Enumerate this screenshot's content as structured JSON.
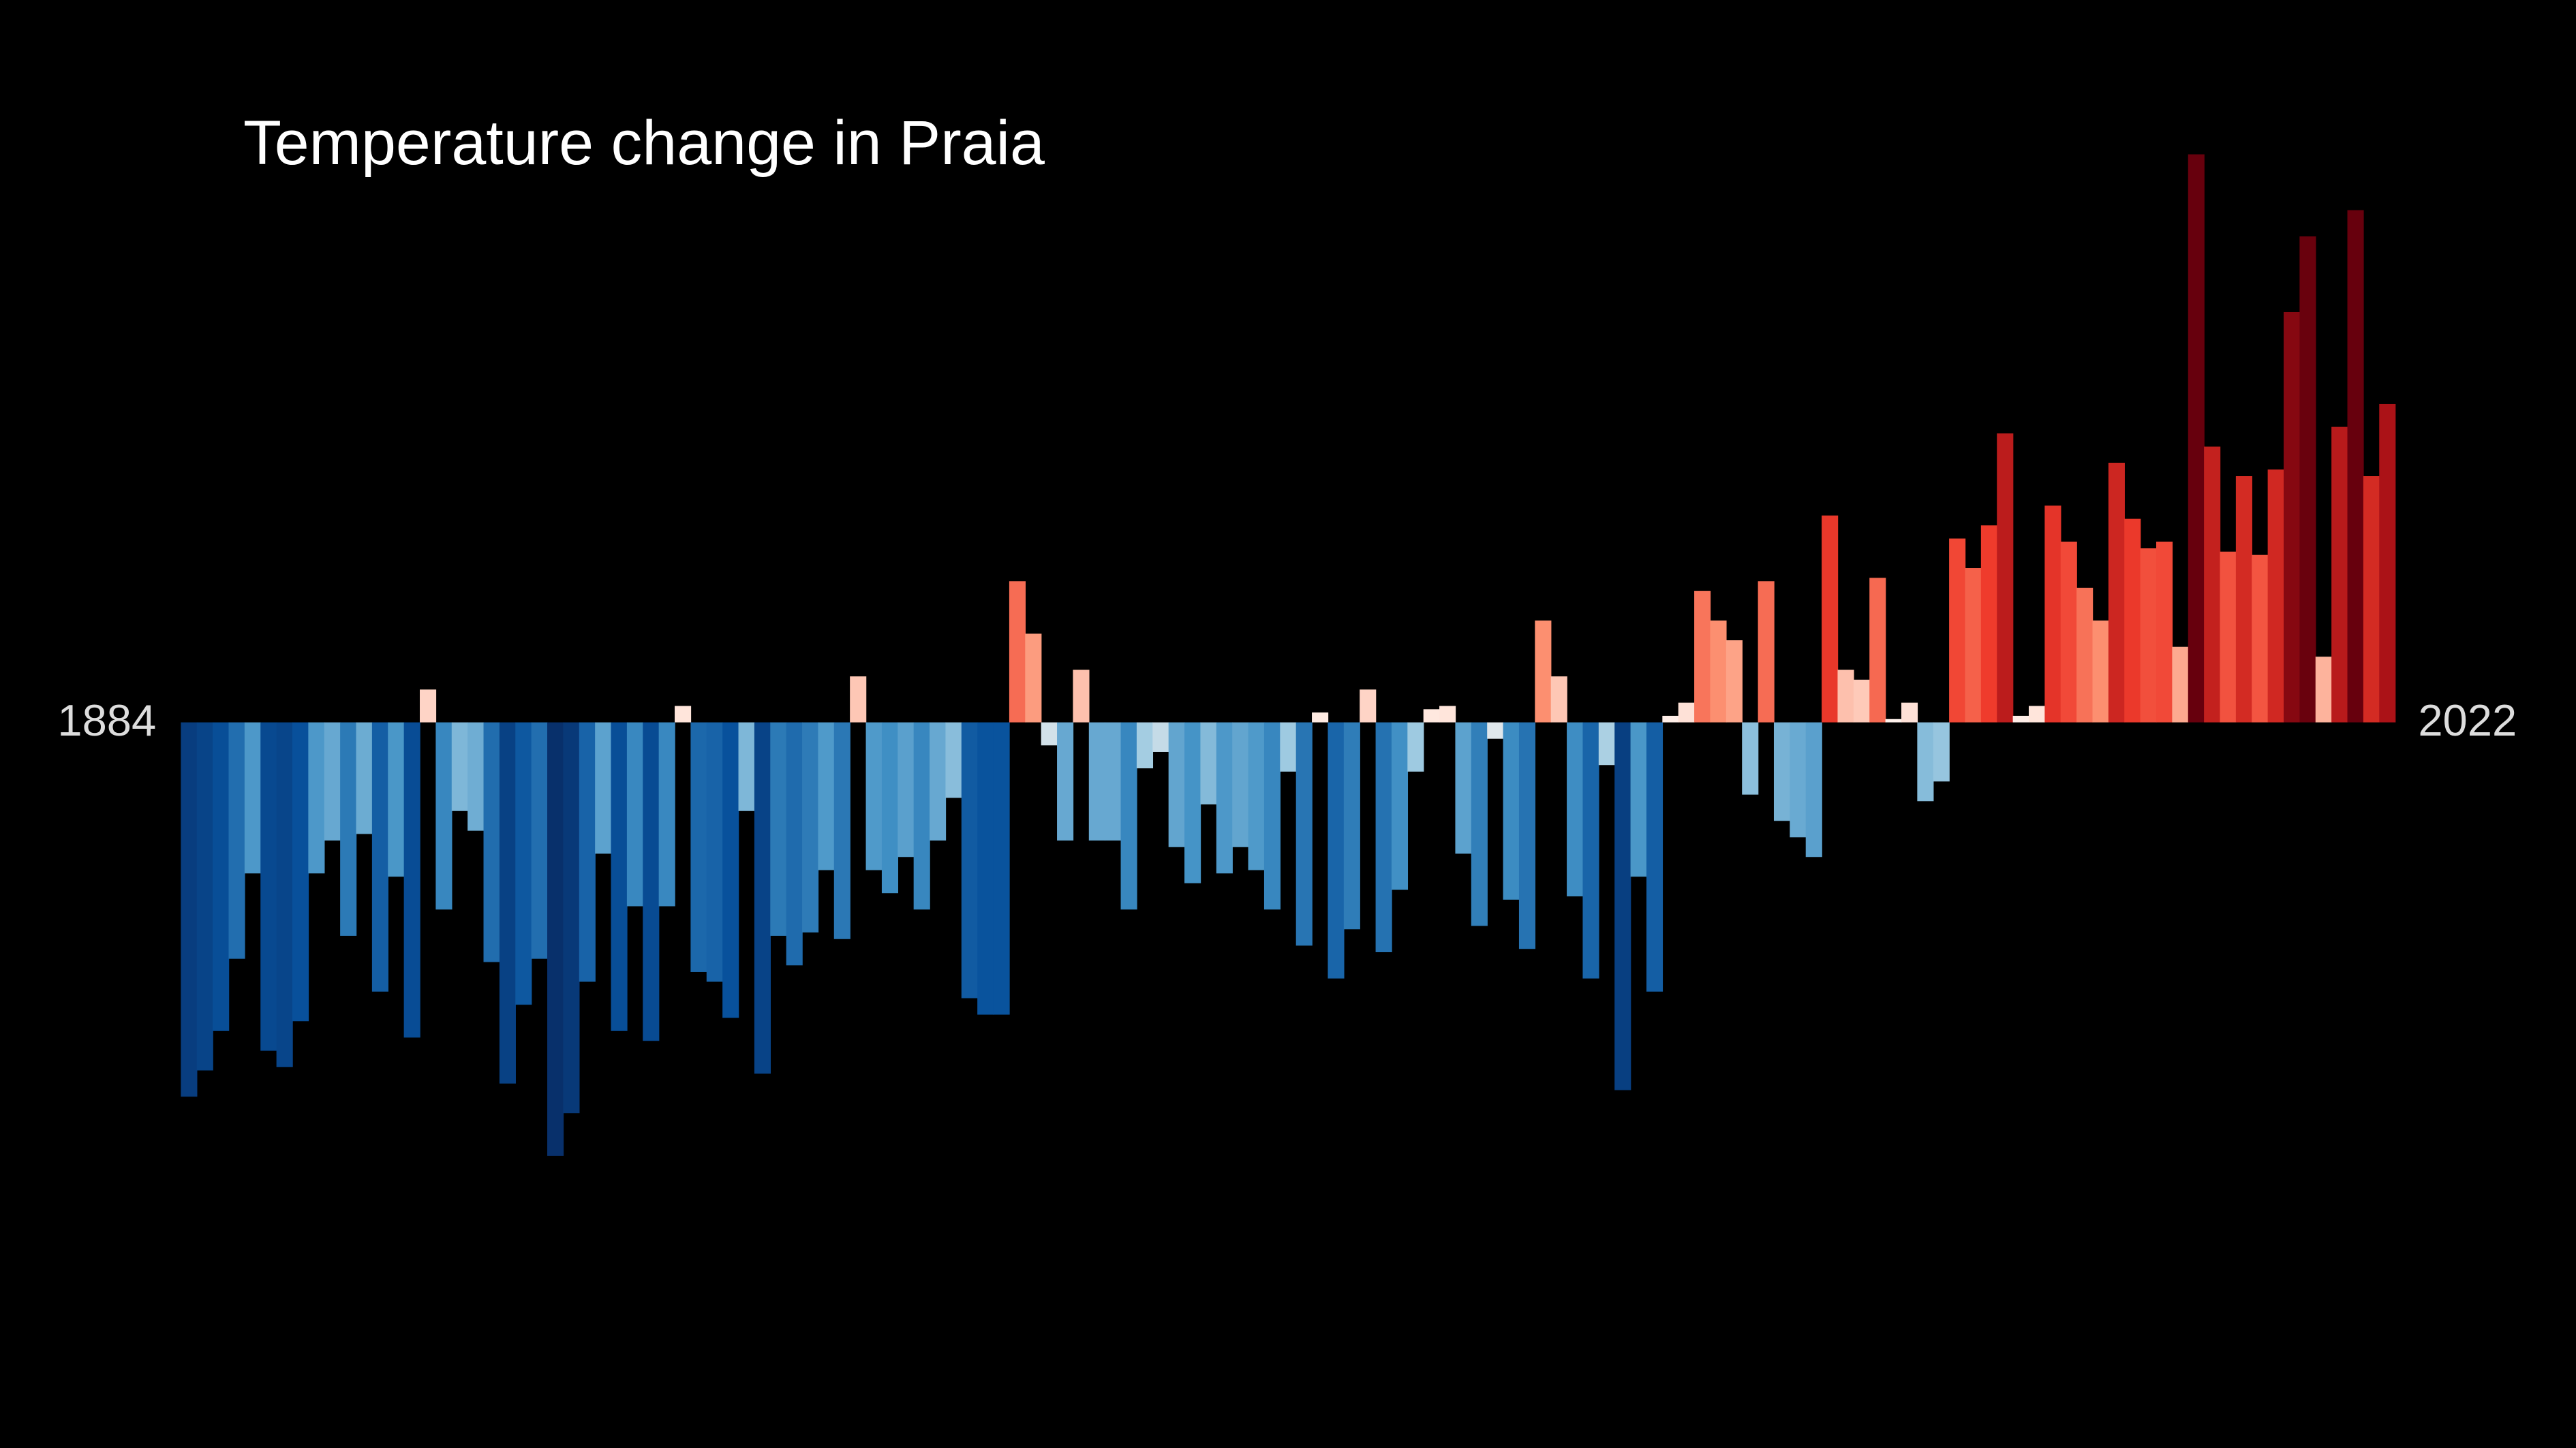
{
  "chart_data": {
    "type": "bar",
    "title": "Temperature change in Praia",
    "x": [
      1884,
      1885,
      1886,
      1887,
      1888,
      1889,
      1890,
      1891,
      1892,
      1893,
      1894,
      1895,
      1896,
      1897,
      1898,
      1899,
      1900,
      1901,
      1902,
      1903,
      1904,
      1905,
      1906,
      1907,
      1908,
      1909,
      1910,
      1911,
      1912,
      1913,
      1914,
      1915,
      1916,
      1917,
      1918,
      1919,
      1920,
      1921,
      1922,
      1923,
      1924,
      1925,
      1926,
      1927,
      1928,
      1929,
      1930,
      1931,
      1932,
      1933,
      1934,
      1935,
      1936,
      1937,
      1938,
      1939,
      1940,
      1941,
      1942,
      1943,
      1944,
      1945,
      1946,
      1947,
      1948,
      1949,
      1950,
      1951,
      1952,
      1953,
      1954,
      1955,
      1956,
      1957,
      1958,
      1959,
      1960,
      1961,
      1962,
      1963,
      1964,
      1965,
      1966,
      1967,
      1968,
      1969,
      1970,
      1971,
      1972,
      1973,
      1974,
      1975,
      1976,
      1977,
      1978,
      1979,
      1980,
      1981,
      1982,
      1983,
      1984,
      1985,
      1986,
      1987,
      1988,
      1989,
      1990,
      1991,
      1992,
      1993,
      1994,
      1995,
      1996,
      1997,
      1998,
      1999,
      2000,
      2001,
      2002,
      2003,
      2004,
      2005,
      2006,
      2007,
      2008,
      2009,
      2010,
      2011,
      2012,
      2013,
      2014,
      2015,
      2016,
      2017,
      2018,
      2019,
      2020,
      2021,
      2022
    ],
    "values": [
      -1.14,
      -1.06,
      -0.94,
      -0.72,
      -0.46,
      -1.0,
      -1.05,
      -0.91,
      -0.46,
      -0.36,
      -0.65,
      -0.34,
      -0.82,
      -0.47,
      -0.96,
      0.1,
      -0.57,
      -0.27,
      -0.33,
      -0.73,
      -1.1,
      -0.86,
      -0.72,
      -1.32,
      -1.19,
      -0.79,
      -0.4,
      -0.94,
      -0.56,
      -0.97,
      -0.56,
      0.05,
      -0.76,
      -0.79,
      -0.9,
      -0.27,
      -1.07,
      -0.65,
      -0.74,
      -0.64,
      -0.45,
      -0.66,
      0.14,
      -0.45,
      -0.52,
      -0.41,
      -0.57,
      -0.36,
      -0.23,
      -0.84,
      -0.89,
      -0.89,
      0.43,
      0.27,
      -0.07,
      -0.36,
      0.16,
      -0.36,
      -0.36,
      -0.57,
      -0.14,
      -0.09,
      -0.38,
      -0.49,
      -0.25,
      -0.46,
      -0.38,
      -0.45,
      -0.57,
      -0.15,
      -0.68,
      0.03,
      -0.78,
      -0.63,
      0.1,
      -0.7,
      -0.51,
      -0.15,
      0.04,
      0.05,
      -0.4,
      -0.62,
      -0.05,
      -0.54,
      -0.69,
      0.31,
      0.14,
      -0.53,
      -0.78,
      -0.13,
      -1.12,
      -0.47,
      -0.82,
      0.02,
      0.06,
      0.4,
      0.31,
      0.25,
      -0.22,
      0.43,
      -0.3,
      -0.35,
      -0.41,
      0.63,
      0.16,
      0.13,
      0.44,
      0.01,
      0.06,
      -0.24,
      -0.18,
      0.56,
      0.47,
      0.6,
      0.88,
      0.02,
      0.05,
      0.66,
      0.55,
      0.41,
      0.31,
      0.79,
      0.62,
      0.53,
      0.55,
      0.23,
      1.73,
      0.84,
      0.52,
      0.75,
      0.51,
      0.77,
      1.25,
      1.48,
      0.2,
      0.9,
      1.56,
      0.75,
      0.97
    ],
    "ylim": [
      -2.21,
      2.2
    ],
    "color_scale": {
      "domain": [
        -1.3,
        -0.9,
        -0.5,
        -0.15,
        0,
        0.3,
        0.6,
        1.0,
        1.5
      ],
      "colors": [
        "#08306b",
        "#08519c",
        "#4292c6",
        "#9ecae1",
        "#fff5f0",
        "#fc9272",
        "#ef3b2c",
        "#a50f15",
        "#67000d"
      ]
    }
  }
}
